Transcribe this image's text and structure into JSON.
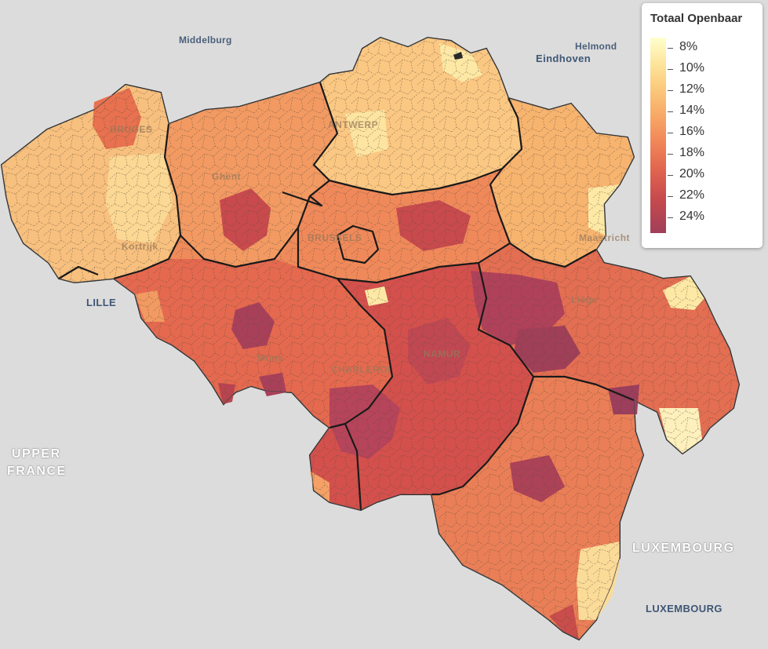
{
  "map": {
    "country": "Belgium",
    "metric_colors": {
      "low": "#ffffcc",
      "mid": "#f08558",
      "high": "#a03f58",
      "province_border": "#1a1a1a",
      "municipality_border": "#555555",
      "background": "#dcdcdc"
    }
  },
  "labels": {
    "middelburg": "Middelburg",
    "helmond": "Helmond",
    "eindhoven": "Eindhoven",
    "bruges": "BRUGES",
    "antwerp": "ANTWERP",
    "ghent": "Ghent",
    "brussels": "BRUSSELS",
    "kortrijk": "Kortrijk",
    "maastricht": "Maastricht",
    "lille": "LILLE",
    "liege": "Liège",
    "mons": "Mons",
    "charleroi": "CHARLEROI",
    "namur": "NAMUR",
    "upper_france_1": "UPPER",
    "upper_france_2": "FRANCE",
    "luxembourg_region": "LUXEMBOURG",
    "luxembourg_city": "LUXEMBOURG"
  },
  "legend": {
    "title": "Totaal Openbaar",
    "ticks": [
      "8%",
      "10%",
      "12%",
      "14%",
      "16%",
      "18%",
      "20%",
      "22%",
      "24%"
    ],
    "tick_values": [
      8,
      10,
      12,
      14,
      16,
      18,
      20,
      22,
      24
    ],
    "range": [
      7,
      25.5
    ]
  }
}
